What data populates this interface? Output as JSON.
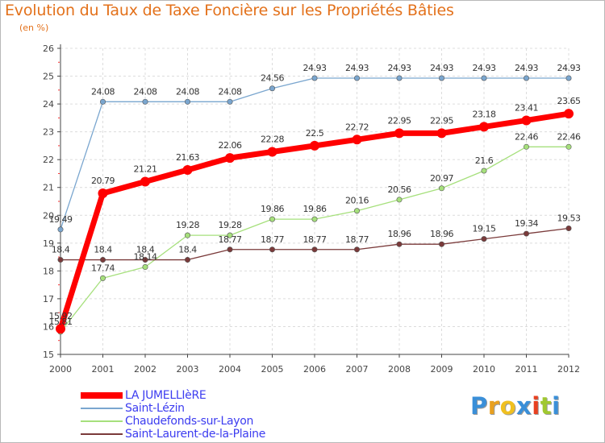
{
  "chart_data": {
    "type": "line",
    "title": "Evolution du Taux de Taxe Foncière sur les Propriétés Bâties",
    "unit_label": "(en %)",
    "xlabel": "",
    "ylabel": "",
    "x": [
      "2000",
      "2001",
      "2002",
      "2003",
      "2004",
      "2005",
      "2006",
      "2007",
      "2008",
      "2009",
      "2010",
      "2011",
      "2012"
    ],
    "ylim": [
      15,
      26
    ],
    "yticks": [
      "15",
      "16",
      "17",
      "18",
      "19",
      "20",
      "21",
      "22",
      "23",
      "24",
      "25",
      "26"
    ],
    "grid": true,
    "legend_position": "bottom-left",
    "series": [
      {
        "name": "LA JUMELLIèRE",
        "color": "#ff0000",
        "values": [
          15.92,
          20.79,
          21.21,
          21.63,
          22.06,
          22.28,
          22.5,
          22.72,
          22.95,
          22.95,
          23.18,
          23.41,
          23.65
        ],
        "labels": [
          "15.92",
          "20.79",
          "21.21",
          "21.63",
          "22.06",
          "22.28",
          "22.5",
          "22.72",
          "22.95",
          "22.95",
          "23.18",
          "23.41",
          "23.65"
        ]
      },
      {
        "name": "Saint-Lézin",
        "color": "#7aa6cf",
        "values": [
          19.49,
          24.08,
          24.08,
          24.08,
          24.08,
          24.56,
          24.93,
          24.93,
          24.93,
          24.93,
          24.93,
          24.93,
          24.93
        ],
        "labels": [
          "19.49",
          "24.08",
          "24.08",
          "24.08",
          "24.08",
          "24.56",
          "24.93",
          "24.93",
          "24.93",
          "24.93",
          "24.93",
          "24.93",
          "24.93"
        ]
      },
      {
        "name": "Chaudefonds-sur-Layon",
        "color": "#a6e07c",
        "values": [
          15.81,
          17.74,
          18.14,
          19.28,
          19.28,
          19.86,
          19.86,
          20.16,
          20.56,
          20.97,
          21.6,
          22.46,
          22.46
        ],
        "labels": [
          "15.81",
          "17.74",
          "18.14",
          "19.28",
          "19.28",
          "19.86",
          "19.86",
          "20.16",
          "20.56",
          "20.97",
          "21.6",
          "22.46",
          "22.46"
        ]
      },
      {
        "name": "Saint-Laurent-de-la-Plaine",
        "color": "#7a3a3a",
        "values": [
          18.4,
          18.4,
          18.4,
          18.4,
          18.77,
          18.77,
          18.77,
          18.77,
          18.96,
          18.96,
          19.15,
          19.34,
          19.53
        ],
        "labels": [
          "18.4",
          "18.4",
          "18.4",
          "18.4",
          "18.77",
          "18.77",
          "18.77",
          "18.77",
          "18.96",
          "18.96",
          "19.15",
          "19.34",
          "19.53"
        ]
      }
    ]
  },
  "logo": {
    "letters": [
      "P",
      "r",
      "o",
      "x",
      "i",
      "t",
      "i"
    ],
    "colors": [
      "#3a8fd8",
      "#e8a020",
      "#f0c020",
      "#3a8fd8",
      "#e84020",
      "#a0c830",
      "#3a8fd8"
    ]
  }
}
